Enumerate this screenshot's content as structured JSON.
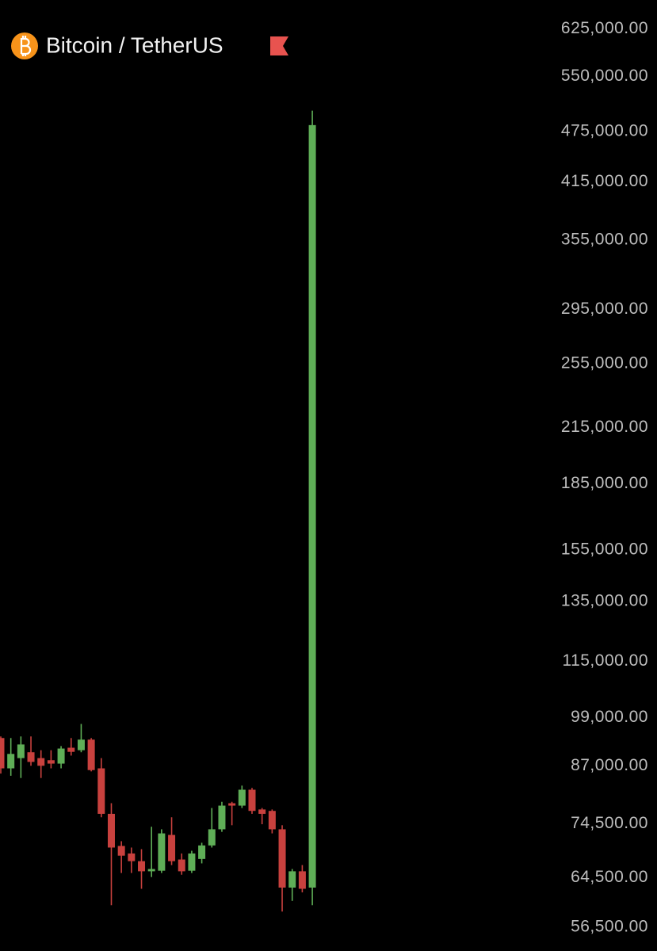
{
  "chart_data": {
    "type": "candlestick",
    "title": "Bitcoin / TetherUS",
    "log_scale": true,
    "up_color": "#5fae57",
    "down_color": "#c8413e",
    "open": [
      93700,
      86400,
      88800,
      90200,
      88800,
      88300,
      87500,
      91300,
      90700,
      93300,
      86400,
      76500,
      70200,
      68800,
      67400,
      65600,
      65700,
      72300,
      67700,
      65700,
      67800,
      70300,
      73400,
      78700,
      78200,
      81600,
      77400,
      77100,
      73400,
      62800,
      65600,
      62800
    ],
    "high": [
      94100,
      93700,
      94100,
      94100,
      90700,
      90700,
      91700,
      93700,
      97300,
      93700,
      88800,
      78700,
      71100,
      69900,
      69600,
      73900,
      73400,
      75800,
      68800,
      69300,
      70800,
      77700,
      79000,
      79000,
      82500,
      82000,
      77700,
      77400,
      74200,
      66000,
      66700,
      502000
    ],
    "low": [
      85200,
      84700,
      84200,
      87000,
      84200,
      86400,
      86400,
      89400,
      90200,
      85700,
      75800,
      59900,
      65300,
      65300,
      62600,
      64600,
      65300,
      66700,
      65000,
      65300,
      67000,
      69900,
      72900,
      74200,
      77700,
      76500,
      74400,
      72600,
      58900,
      60600,
      62000,
      59900
    ],
    "close": [
      86400,
      89800,
      92100,
      87900,
      87000,
      87500,
      91100,
      90300,
      93300,
      86000,
      76500,
      69900,
      68400,
      67400,
      65600,
      66000,
      72600,
      67400,
      65600,
      68800,
      70300,
      73400,
      78200,
      78200,
      81600,
      77100,
      76500,
      73400,
      62800,
      65600,
      62600,
      483000
    ],
    "ylim": [
      53000,
      675000
    ],
    "yticks": [
      {
        "value": 625000,
        "label": "625,000.00"
      },
      {
        "value": 550000,
        "label": "550,000.00"
      },
      {
        "value": 475000,
        "label": "475,000.00"
      },
      {
        "value": 415000,
        "label": "415,000.00"
      },
      {
        "value": 355000,
        "label": "355,000.00"
      },
      {
        "value": 295000,
        "label": "295,000.00"
      },
      {
        "value": 255000,
        "label": "255,000.00"
      },
      {
        "value": 215000,
        "label": "215,000.00"
      },
      {
        "value": 185000,
        "label": "185,000.00"
      },
      {
        "value": 155000,
        "label": "155,000.00"
      },
      {
        "value": 135000,
        "label": "135,000.00"
      },
      {
        "value": 115000,
        "label": "115,000.00"
      },
      {
        "value": 99000,
        "label": "99,000.00"
      },
      {
        "value": 87000,
        "label": "87,000.00"
      },
      {
        "value": 74500,
        "label": "74,500.00"
      },
      {
        "value": 64500,
        "label": "64,500.00"
      },
      {
        "value": 56500,
        "label": "56,500.00"
      }
    ]
  }
}
